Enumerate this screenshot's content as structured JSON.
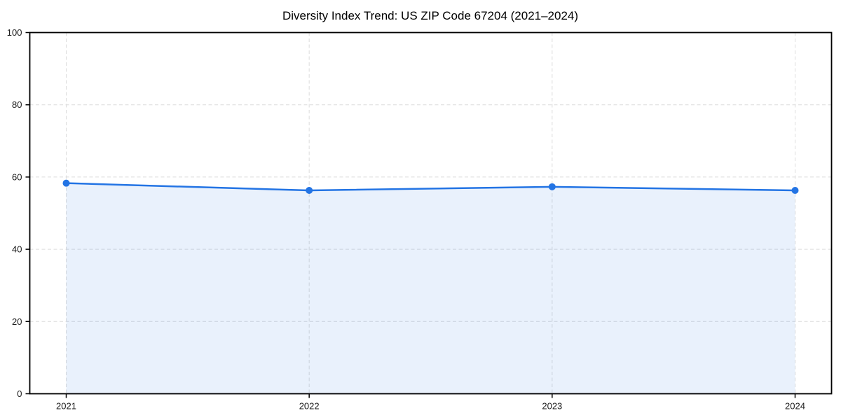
{
  "chart_data": {
    "type": "line",
    "title": "Diversity Index Trend: US ZIP Code 67204 (2021–2024)",
    "x": [
      2021,
      2022,
      2023,
      2024
    ],
    "series": [
      {
        "name": "Diversity Index",
        "values": [
          58.3,
          56.3,
          57.3,
          56.3
        ]
      }
    ],
    "xlabel": "",
    "ylabel": "",
    "xlim": [
      2020.85,
      2024.15
    ],
    "ylim": [
      0,
      100
    ],
    "xticks": [
      2021,
      2022,
      2023,
      2024
    ],
    "yticks": [
      0,
      20,
      40,
      60,
      80,
      100
    ],
    "grid": "dashed",
    "legend": "none",
    "area_fill": true,
    "marker": "circle",
    "colors": {
      "line": "#2374e4",
      "marker": "#2374e4",
      "fill": "#2374e4",
      "fill_opacity": 0.1,
      "grid": "#dcdcdc",
      "spine": "#000000",
      "tick_label": "#1a1a1a",
      "title": "#000000",
      "background": "#ffffff"
    }
  }
}
